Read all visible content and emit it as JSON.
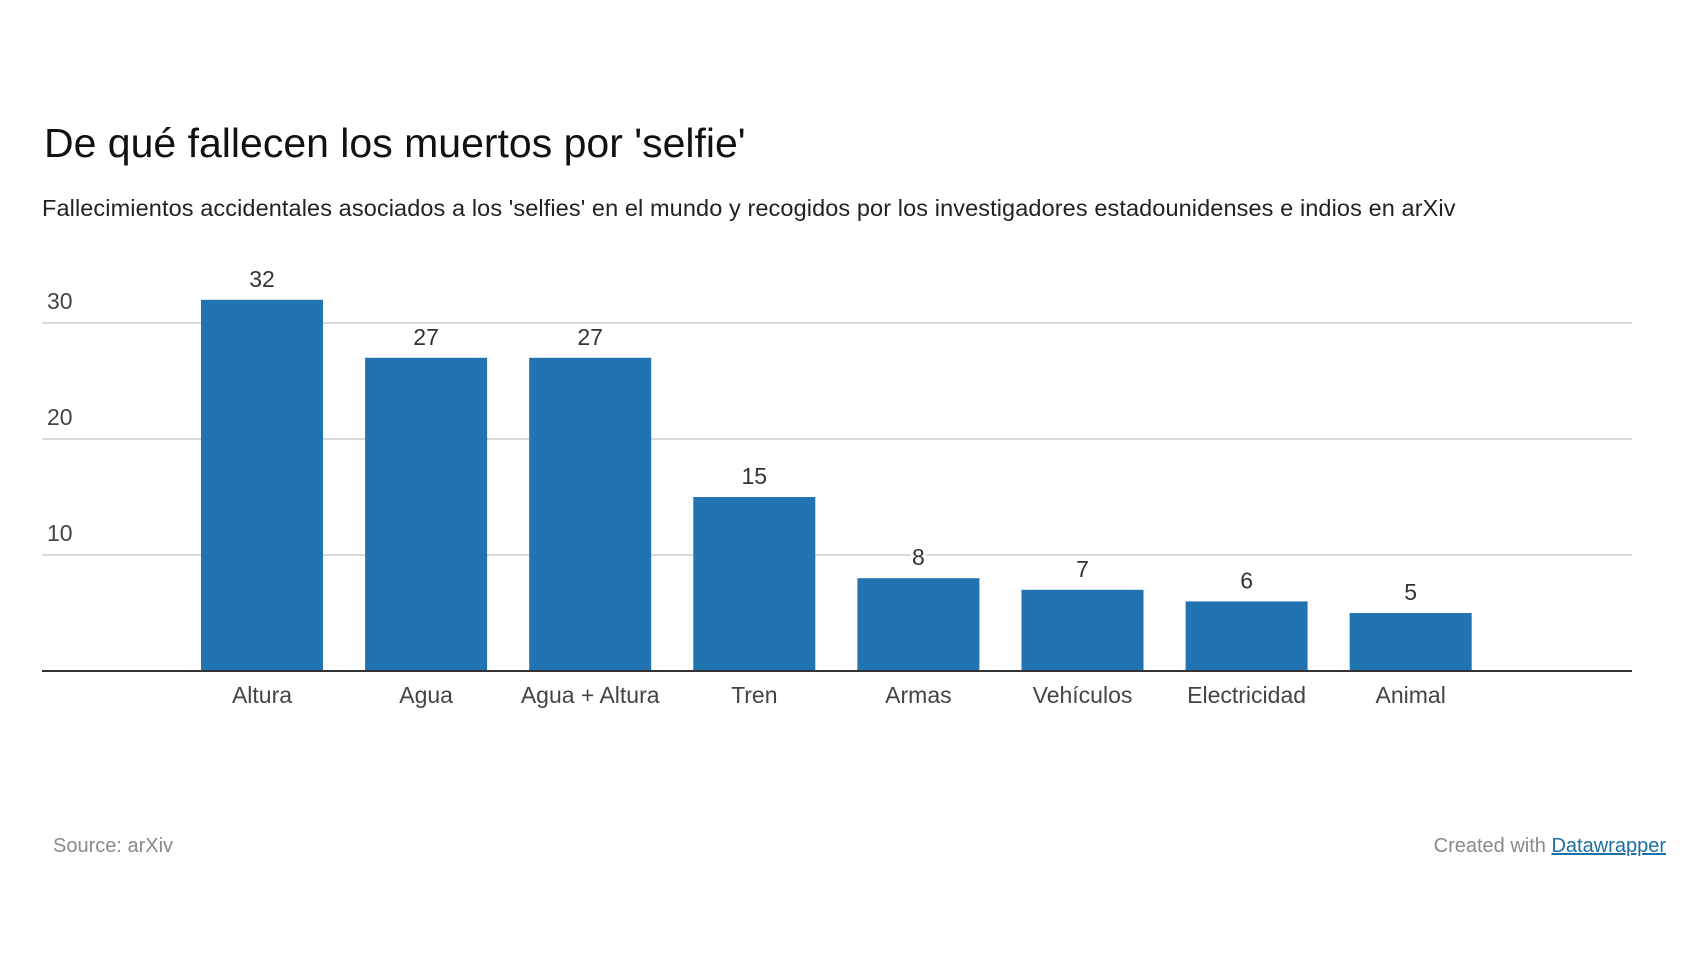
{
  "header": {
    "title": "De qué fallecen los muertos por 'selfie'",
    "subtitle": "Fallecimientos accidentales asociados a los 'selfies' en el mundo y recogidos por los investigadores estadounidenses e indios en arXiv"
  },
  "footer": {
    "source": "Source: arXiv",
    "credit_prefix": "Created with",
    "credit_link": "Datawrapper"
  },
  "colors": {
    "bar": "#2173b2",
    "grid": "#d9d9d9",
    "axis": "#333333",
    "link": "#1d6fa5"
  },
  "chart_data": {
    "type": "bar",
    "title": "De qué fallecen los muertos por 'selfie'",
    "subtitle": "Fallecimientos accidentales asociados a los 'selfies' en el mundo y recogidos por los investigadores estadounidenses e indios en arXiv",
    "categories": [
      "Altura",
      "Agua",
      "Agua + Altura",
      "Tren",
      "Armas",
      "Vehículos",
      "Electricidad",
      "Animal"
    ],
    "values": [
      32,
      27,
      27,
      15,
      8,
      7,
      6,
      5
    ],
    "value_labels": [
      "32",
      "27",
      "27",
      "15",
      "8",
      "7",
      "6",
      "5"
    ],
    "xlabel": "",
    "ylabel": "",
    "ylim": [
      0,
      30
    ],
    "yticks": [
      10,
      20,
      30
    ],
    "ytick_labels": [
      "10",
      "20",
      "30"
    ],
    "grid": true,
    "legend": "none",
    "source": "arXiv"
  }
}
